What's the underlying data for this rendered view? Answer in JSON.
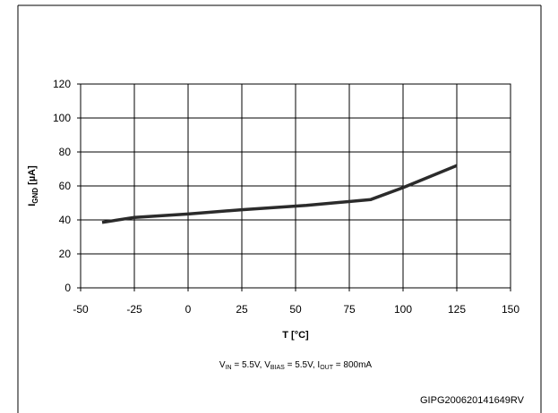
{
  "chart_data": {
    "type": "line",
    "title": "",
    "xlabel": "T [°C]",
    "ylabel_main": "I",
    "ylabel_sub": "GND",
    "ylabel_unit": " [µA]",
    "xlim": [
      -50,
      150
    ],
    "ylim": [
      0,
      120
    ],
    "xticks": [
      -50,
      -25,
      0,
      25,
      50,
      75,
      100,
      125,
      150
    ],
    "yticks": [
      0,
      20,
      40,
      60,
      80,
      100,
      120
    ],
    "grid": true,
    "legend": "none",
    "series": [
      {
        "color": "#2b2b2b",
        "x": [
          -40,
          -25,
          0,
          25,
          55,
          85,
          100,
          125
        ],
        "y": [
          38.5,
          41.5,
          43.5,
          46,
          48.5,
          52,
          59,
          72
        ]
      }
    ],
    "caption": {
      "vin_main": "V",
      "vin_sub": "IN",
      "vin_val": " = 5.5V, ",
      "vbias_main": "V",
      "vbias_sub": "BIAS",
      "vbias_val": " = 5.5V, ",
      "iout_main": "I",
      "iout_sub": "OUT",
      "iout_val": " = 800mA"
    },
    "figure_code": "GIPG200620141649RV"
  }
}
